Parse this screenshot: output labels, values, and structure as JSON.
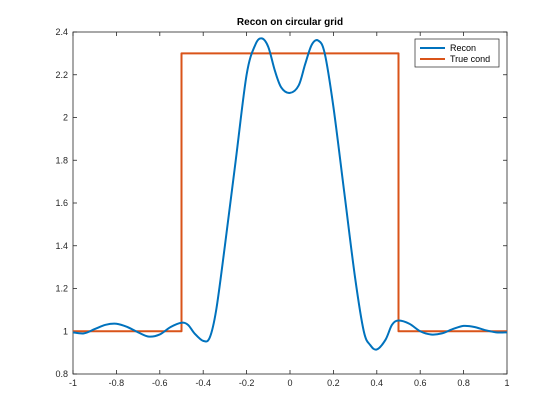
{
  "chart_data": {
    "type": "line",
    "title": "Recon on circular grid",
    "xlabel": "",
    "ylabel": "",
    "xlim": [
      -1,
      1
    ],
    "ylim": [
      0.8,
      2.4
    ],
    "xticks": [
      -1,
      -0.8,
      -0.6,
      -0.4,
      -0.2,
      0,
      0.2,
      0.4,
      0.6,
      0.8,
      1
    ],
    "xtick_labels": [
      "-1",
      "-0.8",
      "-0.6",
      "-0.4",
      "-0.2",
      "0",
      "0.2",
      "0.4",
      "0.6",
      "0.8",
      "1"
    ],
    "yticks": [
      0.8,
      1,
      1.2,
      1.4,
      1.6,
      1.8,
      2,
      2.2,
      2.4
    ],
    "ytick_labels": [
      "0.8",
      "1",
      "1.2",
      "1.4",
      "1.6",
      "1.8",
      "2",
      "2.2",
      "2.4"
    ],
    "grid": false,
    "legend_position": "top-right",
    "series": [
      {
        "name": "Recon",
        "color": "#0072BD",
        "x": [
          -1,
          -0.95,
          -0.9,
          -0.85,
          -0.8,
          -0.75,
          -0.7,
          -0.65,
          -0.6,
          -0.55,
          -0.5,
          -0.47,
          -0.44,
          -0.4,
          -0.37,
          -0.34,
          -0.3,
          -0.25,
          -0.2,
          -0.16,
          -0.13,
          -0.1,
          -0.07,
          -0.04,
          0,
          0.04,
          0.07,
          0.1,
          0.13,
          0.16,
          0.2,
          0.25,
          0.3,
          0.34,
          0.37,
          0.4,
          0.44,
          0.47,
          0.5,
          0.55,
          0.6,
          0.65,
          0.7,
          0.75,
          0.8,
          0.85,
          0.9,
          0.95,
          1
        ],
        "y": [
          0.995,
          0.99,
          1.01,
          1.03,
          1.035,
          1.02,
          0.995,
          0.975,
          0.985,
          1.02,
          1.04,
          1.03,
          0.99,
          0.955,
          0.97,
          1.1,
          1.4,
          1.8,
          2.2,
          2.34,
          2.37,
          2.33,
          2.22,
          2.14,
          2.115,
          2.15,
          2.25,
          2.34,
          2.36,
          2.3,
          2.05,
          1.65,
          1.25,
          1.0,
          0.935,
          0.915,
          0.96,
          1.03,
          1.05,
          1.035,
          1.0,
          0.985,
          0.99,
          1.01,
          1.025,
          1.02,
          1.005,
          0.995,
          0.995
        ]
      },
      {
        "name": "True cond",
        "color": "#D95319",
        "x": [
          -1,
          -0.5,
          -0.5,
          0.5,
          0.5,
          1
        ],
        "y": [
          1,
          1,
          2.3,
          2.3,
          1,
          1
        ]
      }
    ]
  }
}
